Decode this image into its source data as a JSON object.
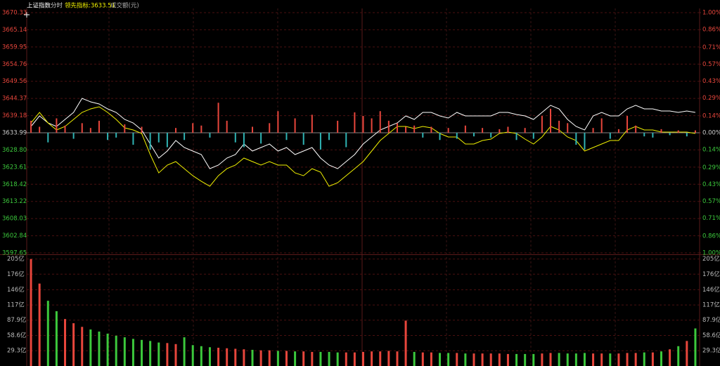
{
  "chart_data": [
    {
      "type": "line",
      "title": "上证指数",
      "period": "分时",
      "ylim": [
        3597.65,
        3670.33
      ],
      "yticks": [
        3670.33,
        3665.14,
        3659.95,
        3654.76,
        3649.56,
        3644.37,
        3639.18,
        3633.99,
        {
          "value": 3628.8,
          "label": "3628.80"
        },
        3623.61,
        3618.42,
        3613.22,
        3608.03,
        3602.84,
        3597.65
      ],
      "y2lim": [
        -1,
        1
      ],
      "y2ticks": [
        {
          "value": 1,
          "label": "1.00%"
        },
        {
          "value": 0.86,
          "label": "0.86%"
        },
        {
          "value": 0.71,
          "label": "0.71%"
        },
        {
          "value": 0.57,
          "label": "0.57%"
        },
        {
          "value": 0.43,
          "label": "0.43%"
        },
        {
          "value": 0.29,
          "label": "0.29%"
        },
        {
          "value": 0.14,
          "label": "0.14%"
        },
        {
          "value": 0,
          "label": "0.00%"
        },
        {
          "value": -0.14,
          "label": "0.14%"
        },
        {
          "value": -0.29,
          "label": "0.29%"
        },
        {
          "value": -0.43,
          "label": "0.43%"
        },
        {
          "value": -0.57,
          "label": "0.57%"
        },
        {
          "value": -0.71,
          "label": "0.71%"
        },
        {
          "value": -0.86,
          "label": "0.86%"
        },
        {
          "value": -1,
          "label": "1.00%"
        }
      ],
      "grid": true,
      "up_color": "#e8463c",
      "down_color": "#2fb3b3",
      "series": [
        {
          "color": "#ffffff",
          "values": [
            3635.9,
            3639.09,
            3636.97,
            3635.9,
            3638.03,
            3640.16,
            3644.41,
            3643.35,
            3642.71,
            3641.22,
            3640.16,
            3638.03,
            3636.97,
            3634.84,
            3630.59,
            3626.33,
            3628.46,
            3631.65,
            3629.52,
            3628.46,
            3627.4,
            3623.14,
            3624.21,
            3626.33,
            3627.4,
            3630.59,
            3628.46,
            3629.52,
            3630.59,
            3628.46,
            3629.52,
            3627.4,
            3628.46,
            3629.52,
            3626.33,
            3624.21,
            3623.14,
            3625.27,
            3627.4,
            3630.59,
            3632.71,
            3634.84,
            3635.9,
            3636.97,
            3639.09,
            3638.03,
            3640.16,
            3640.16,
            3639.09,
            3638.46,
            3640.16,
            3639.09,
            3639.09,
            3639.09,
            3639.09,
            3640.16,
            3640.16,
            3639.52,
            3639.09,
            3638.03,
            3640.16,
            3642.29,
            3641.22,
            3638.03,
            3635.9,
            3634.84,
            3639.09,
            3640.16,
            3639.09,
            3639.09,
            3641.22,
            3642.29,
            3641.22,
            3641.22,
            3640.58,
            3640.58,
            3640.16,
            3640.58,
            3640.16
          ]
        },
        {
          "name": "领先指标:3633.51",
          "color": "#f0f000",
          "values": [
            3636.97,
            3640.16,
            3636.97,
            3634.84,
            3635.9,
            3638.03,
            3640.16,
            3641.22,
            3641.86,
            3640.16,
            3638.03,
            3635.48,
            3634.84,
            3633.78,
            3627.4,
            3621.86,
            3624.21,
            3625.27,
            3623.14,
            3621.01,
            3619.31,
            3617.82,
            3621.01,
            3623.14,
            3624.21,
            3626.33,
            3625.27,
            3624.21,
            3625.27,
            3624.21,
            3624.21,
            3621.86,
            3621.01,
            3623.14,
            3622.08,
            3617.82,
            3618.88,
            3621.01,
            3623.14,
            3625.27,
            3628.46,
            3631.65,
            3633.78,
            3635.9,
            3635.9,
            3635.27,
            3635.9,
            3635.48,
            3633.78,
            3632.71,
            3632.71,
            3630.59,
            3630.59,
            3631.65,
            3632.08,
            3633.78,
            3634.2,
            3633.78,
            3632.08,
            3630.59,
            3632.71,
            3635.9,
            3634.84,
            3632.71,
            3631.65,
            3628.46,
            3629.52,
            3630.59,
            3631.65,
            3631.65,
            3634.84,
            3635.9,
            3634.84,
            3634.84,
            3634.2,
            3634.2,
            3634.2,
            3634.2,
            3633.78
          ]
        },
        {
          "axis": "y2",
          "kind": "bar",
          "values": [
            0.1,
            0.05,
            -0.08,
            0.12,
            0.06,
            -0.05,
            0.08,
            0.04,
            0.1,
            -0.06,
            -0.04,
            0.07,
            -0.1,
            0.05,
            -0.14,
            -0.08,
            -0.12,
            0.04,
            -0.06,
            0.08,
            0.06,
            -0.04,
            0.25,
            0.1,
            -0.08,
            -0.12,
            0.05,
            -0.09,
            0.08,
            0.18,
            -0.06,
            0.12,
            -0.1,
            0.15,
            -0.14,
            -0.06,
            0.1,
            -0.12,
            0.17,
            0.14,
            0.12,
            0.18,
            0.1,
            0.08,
            0.05,
            0.06,
            -0.04,
            0.05,
            -0.06,
            0.04,
            -0.05,
            0.06,
            -0.03,
            0.04,
            -0.04,
            0.03,
            0.05,
            -0.06,
            0.04,
            -0.05,
            0.14,
            0.2,
            0.1,
            0.08,
            -0.1,
            -0.14,
            0.04,
            0.12,
            -0.05,
            0.03,
            0.14,
            0.06,
            -0.03,
            -0.04,
            0.03,
            -0.02,
            0.02,
            -0.03,
            0.02
          ]
        }
      ]
    },
    {
      "type": "bar",
      "title": "成交额(元)",
      "ylim": [
        0,
        210
      ],
      "yticks": [
        {
          "value": 205,
          "label": "205亿"
        },
        {
          "value": 176,
          "label": "176亿"
        },
        {
          "value": 146,
          "label": "146亿"
        },
        {
          "value": 117,
          "label": "117亿"
        },
        {
          "value": 87.9,
          "label": "87.9亿"
        },
        {
          "value": 58.6,
          "label": "58.6亿"
        },
        {
          "value": 29.3,
          "label": "29.3亿"
        }
      ],
      "grid": true,
      "up_color": "#e8463c",
      "down_color": "#3cc83c",
      "values": [
        205,
        158,
        125,
        105,
        90,
        82,
        75,
        70,
        66,
        62,
        58,
        55,
        52,
        50,
        48,
        45,
        44,
        42,
        55,
        40,
        38,
        36,
        35,
        34,
        33,
        32,
        31,
        30,
        30,
        29,
        29,
        28,
        28,
        27,
        27,
        27,
        26,
        26,
        26,
        27,
        28,
        28,
        29,
        28,
        87,
        27,
        26,
        26,
        25,
        25,
        25,
        24,
        24,
        24,
        24,
        24,
        23,
        23,
        23,
        23,
        24,
        25,
        25,
        24,
        24,
        25,
        24,
        24,
        24,
        24,
        25,
        25,
        26,
        26,
        28,
        32,
        38,
        48,
        72
      ]
    }
  ]
}
